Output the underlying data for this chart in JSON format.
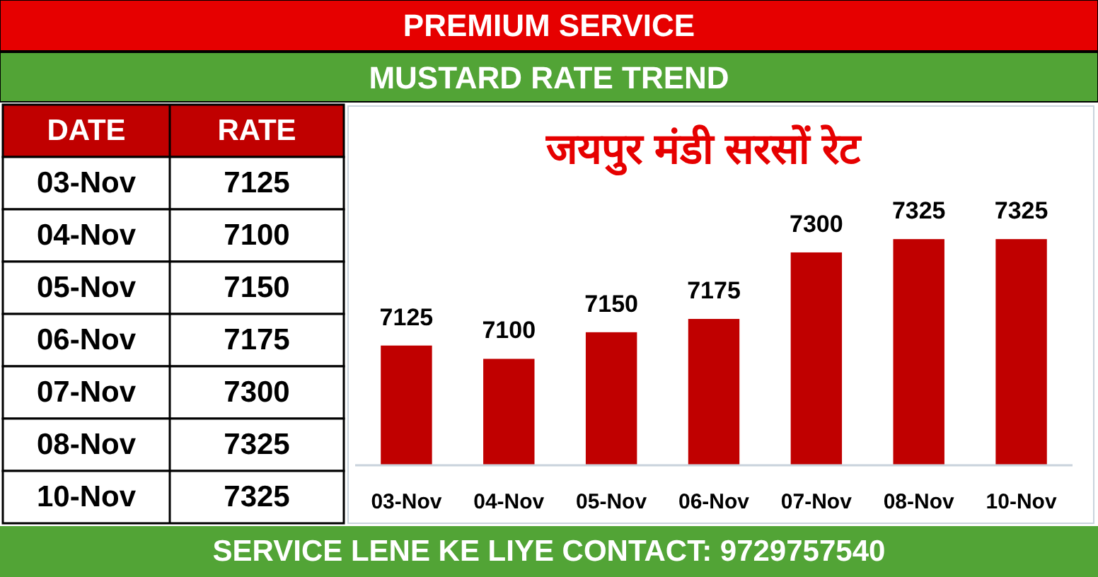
{
  "chart_data": [
    {
      "type": "other",
      "annotations": [
        "DATE",
        "RATE"
      ],
      "categories": [
        "03-Nov",
        "04-Nov",
        "05-Nov",
        "06-Nov",
        "07-Nov",
        "08-Nov",
        "10-Nov"
      ],
      "values": [
        7125,
        7100,
        7150,
        7175,
        7300,
        7325,
        7325
      ],
      "data_labels": true
    },
    {
      "type": "bar",
      "title": "जयपुर मंडी सरसों रेट",
      "subtitle": "MUSTARD RATE TREND",
      "annotations": [
        "PREMIUM SERVICE",
        "SERVICE LENE KE LIYE CONTACT: 9729757540"
      ],
      "categories": [
        "03-Nov",
        "04-Nov",
        "05-Nov",
        "06-Nov",
        "07-Nov",
        "08-Nov",
        "10-Nov"
      ],
      "values": [
        7125,
        7100,
        7150,
        7175,
        7300,
        7325,
        7325
      ],
      "color": "#c00000",
      "ylim": [
        6900,
        7575
      ],
      "data_labels": true
    }
  ]
}
